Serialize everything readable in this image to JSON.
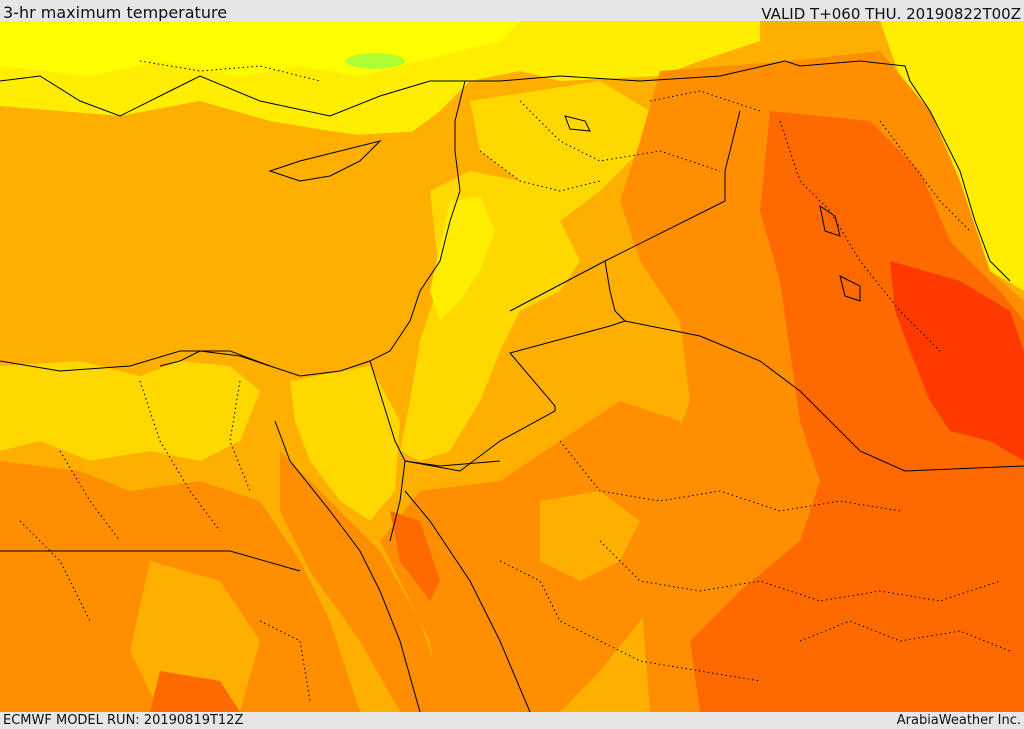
{
  "header": {
    "title": "3-hr maximum temperature",
    "valid": "VALID T+060 THU. 20190822T00Z"
  },
  "footer": {
    "model_run": "ECMWF MODEL RUN: 20190819T12Z",
    "credit": "ArabiaWeather Inc."
  },
  "map": {
    "colors": {
      "background": "#ffaf00",
      "yellow": "#ffee00",
      "bright_yellow": "#ffff00",
      "light_yellow": "#ffd800",
      "orange": "#ff8f00",
      "dark_orange": "#ff6a00",
      "red": "#ff3a00",
      "green": "#9cff40",
      "header_bg": "#e6e6e6"
    }
  }
}
